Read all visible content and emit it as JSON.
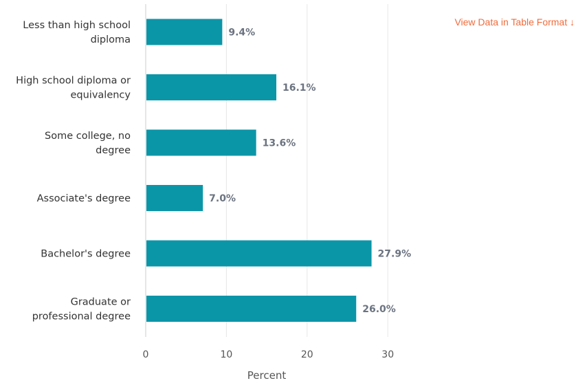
{
  "link": {
    "text": "View Data in Table Format ↓"
  },
  "colors": {
    "bar": "#0b96a8",
    "grid": "#e6e6e6",
    "link": "#f26b3a"
  },
  "chart_data": {
    "type": "bar",
    "orientation": "horizontal",
    "title": "",
    "xlabel": "Percent",
    "ylabel": "",
    "xlim": [
      0,
      31
    ],
    "x_ticks": [
      0,
      10,
      20,
      30
    ],
    "grid": true,
    "categories": [
      [
        "Less than high school",
        "diploma"
      ],
      [
        "High school diploma or",
        "equivalency"
      ],
      [
        "Some college, no",
        "degree"
      ],
      [
        "Associate's degree"
      ],
      [
        "Bachelor's degree"
      ],
      [
        "Graduate or",
        "professional degree"
      ]
    ],
    "values": [
      9.4,
      16.1,
      13.6,
      7.0,
      27.9,
      26.0
    ],
    "data_labels": [
      "9.4%",
      "16.1%",
      "13.6%",
      "7.0%",
      "27.9%",
      "26.0%"
    ]
  }
}
